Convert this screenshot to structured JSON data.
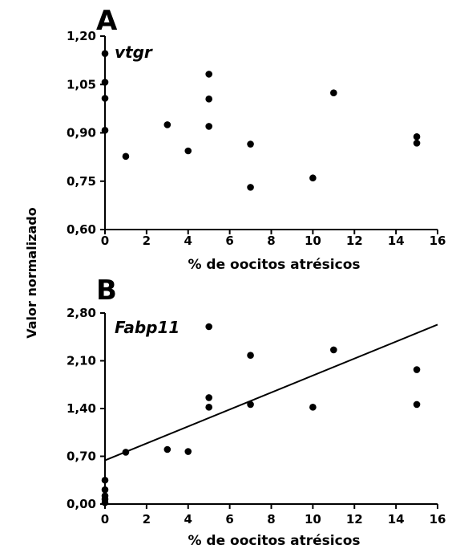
{
  "shared_ylabel": "Valor normalizado",
  "chart_data": [
    {
      "type": "scatter",
      "panel": "A",
      "title": "vtgr",
      "xlabel": "% de oocitos atrésicos",
      "xlim": [
        0,
        16
      ],
      "ylim": [
        0.6,
        1.2
      ],
      "xticks": [
        "0",
        "2",
        "4",
        "6",
        "8",
        "10",
        "12",
        "14",
        "16"
      ],
      "yticks": [
        "0,60",
        "0,75",
        "0,90",
        "1,05",
        "1,20"
      ],
      "trendline": null,
      "series": [
        {
          "points": [
            [
              0,
              1.146
            ],
            [
              0,
              1.057
            ],
            [
              0,
              1.007
            ],
            [
              0,
              0.908
            ],
            [
              1,
              0.827
            ],
            [
              3,
              0.925
            ],
            [
              4,
              0.844
            ],
            [
              5,
              1.082
            ],
            [
              5,
              1.005
            ],
            [
              5,
              0.92
            ],
            [
              7,
              0.865
            ],
            [
              7,
              0.731
            ],
            [
              10,
              0.76
            ],
            [
              11,
              1.024
            ],
            [
              15,
              0.888
            ],
            [
              15,
              0.868
            ]
          ]
        }
      ]
    },
    {
      "type": "scatter",
      "panel": "B",
      "title": "Fabp11",
      "xlabel": "% de oocitos atrésicos",
      "xlim": [
        0,
        16
      ],
      "ylim": [
        0.0,
        2.8
      ],
      "xticks": [
        "0",
        "2",
        "4",
        "6",
        "8",
        "10",
        "12",
        "14",
        "16"
      ],
      "yticks": [
        "0,00",
        "0,70",
        "1,40",
        "2,10",
        "2,80"
      ],
      "trendline": {
        "x": [
          0,
          16
        ],
        "y": [
          0.64,
          2.63
        ]
      },
      "series": [
        {
          "points": [
            [
              0,
              0.35
            ],
            [
              0,
              0.21
            ],
            [
              0,
              0.12
            ],
            [
              0,
              0.07
            ],
            [
              0,
              0.02
            ],
            [
              1,
              0.76
            ],
            [
              3,
              0.8
            ],
            [
              4,
              0.77
            ],
            [
              5,
              2.6
            ],
            [
              5,
              1.56
            ],
            [
              5,
              1.42
            ],
            [
              7,
              2.18
            ],
            [
              7,
              1.46
            ],
            [
              10,
              1.42
            ],
            [
              11,
              2.26
            ],
            [
              15,
              1.97
            ],
            [
              15,
              1.46
            ]
          ]
        }
      ]
    }
  ]
}
